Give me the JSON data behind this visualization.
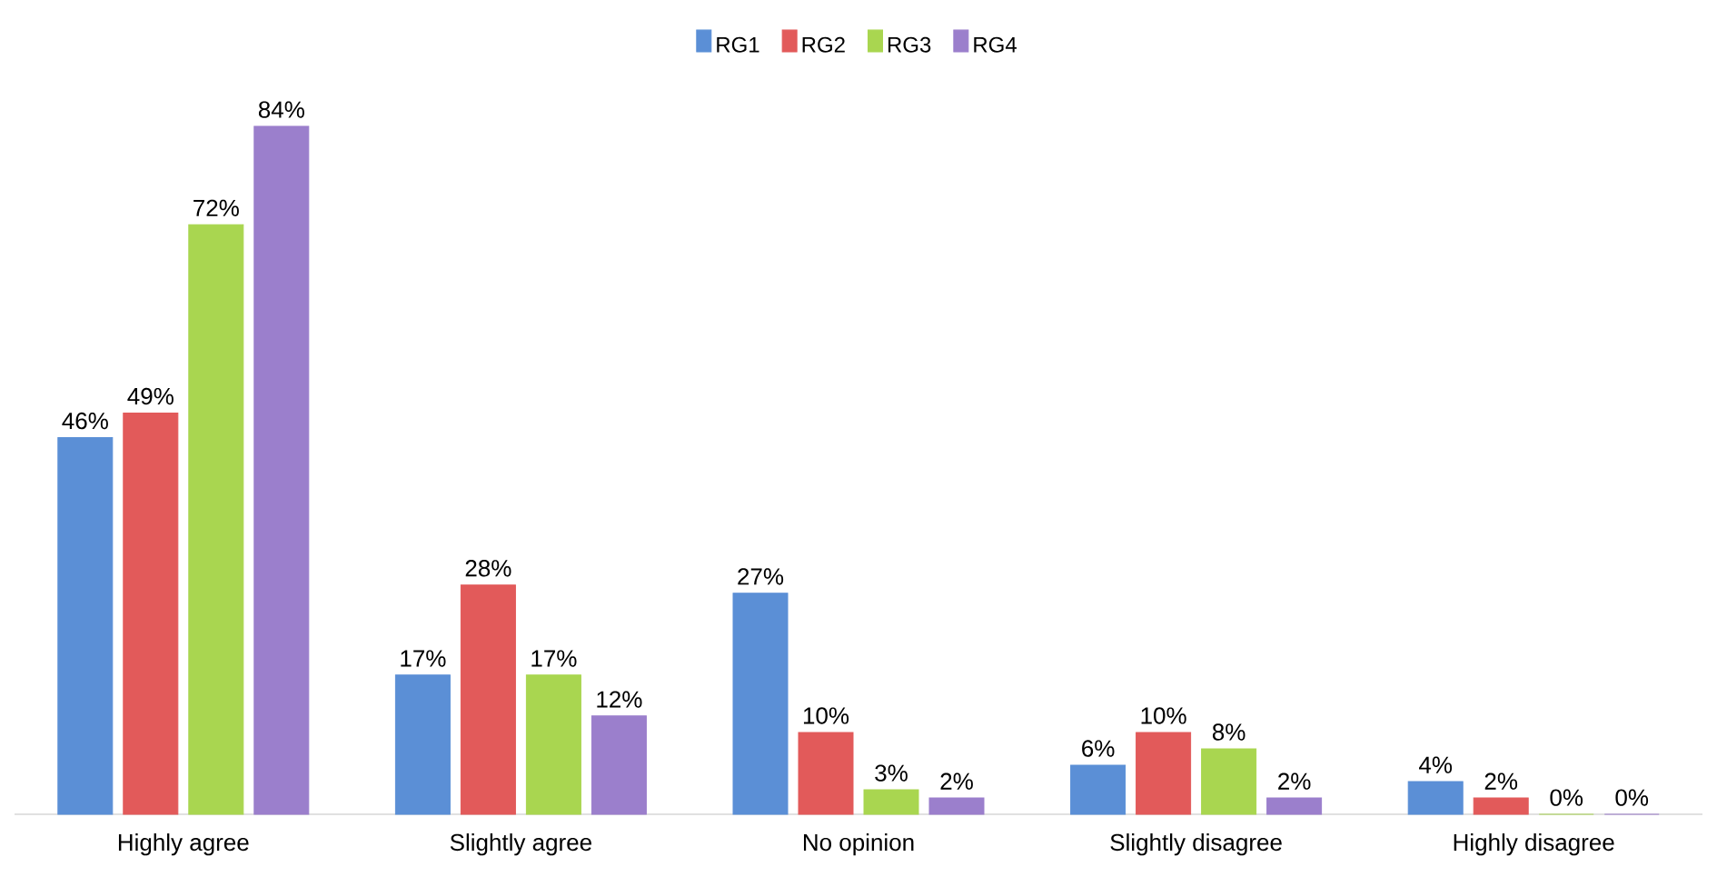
{
  "chart_data": {
    "type": "bar",
    "categories": [
      "Highly agree",
      "Slightly agree",
      "No opinion",
      "Slightly disagree",
      "Highly disagree"
    ],
    "series": [
      {
        "name": "RG1",
        "color": "#5b8fd6",
        "values": [
          46,
          17,
          27,
          6,
          4
        ],
        "value_labels": [
          "46%",
          "17%",
          "27%",
          "6%",
          "4%"
        ]
      },
      {
        "name": "RG2",
        "color": "#e25a5a",
        "values": [
          49,
          28,
          10,
          10,
          2
        ],
        "value_labels": [
          "49%",
          "28%",
          "10%",
          "10%",
          "2%"
        ]
      },
      {
        "name": "RG3",
        "color": "#a9d650",
        "values": [
          72,
          17,
          3,
          8,
          0
        ],
        "value_labels": [
          "72%",
          "17%",
          "3%",
          "8%",
          "0%"
        ]
      },
      {
        "name": "RG4",
        "color": "#9b7fcc",
        "values": [
          84,
          12,
          2,
          2,
          0
        ],
        "value_labels": [
          "84%",
          "12%",
          "2%",
          "2%",
          "0%"
        ]
      }
    ],
    "legend": "top",
    "grid": false
  }
}
